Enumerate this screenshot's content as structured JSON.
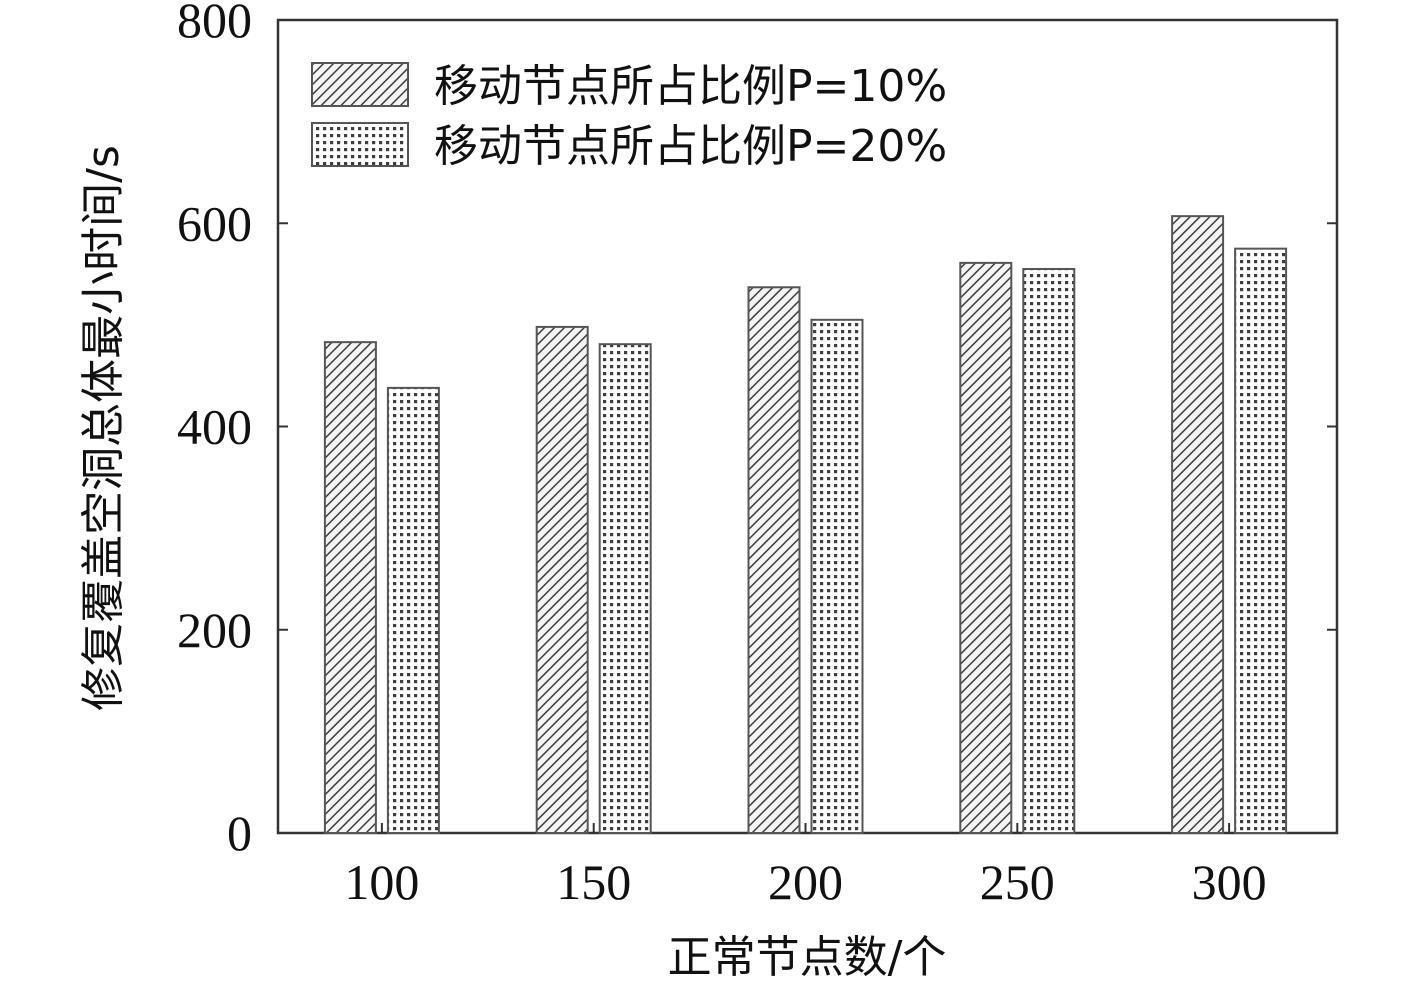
{
  "chart_data": {
    "type": "bar",
    "title": "",
    "xlabel": "正常节点数/个",
    "ylabel": "修复覆盖空洞总体最小时间/s",
    "categories": [
      "100",
      "150",
      "200",
      "250",
      "300"
    ],
    "series": [
      {
        "name": "移动节点所占比例P=10%",
        "values": [
          483,
          498,
          537,
          561,
          607
        ],
        "pattern": "diagonal-hatch"
      },
      {
        "name": "移动节点所占比例P=20%",
        "values": [
          438,
          481,
          505,
          555,
          575
        ],
        "pattern": "dotted-grid"
      }
    ],
    "ylim": [
      0,
      800
    ],
    "yticks": [
      "0",
      "200",
      "400",
      "600",
      "800"
    ],
    "grid": false,
    "legend_position": "top-left",
    "colors": {
      "axis": "#333333",
      "bar_fill": "#ffffff",
      "bar_stroke": "#555555",
      "pattern_ink": "#444444"
    }
  }
}
